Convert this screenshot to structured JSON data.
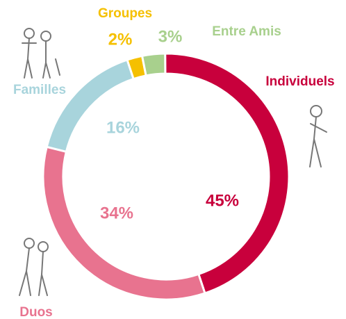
{
  "chart_data": {
    "type": "pie",
    "donut": true,
    "categories": [
      "Individuels",
      "Duos",
      "Familles",
      "Groupes",
      "Entre Amis"
    ],
    "values": [
      45,
      34,
      16,
      2,
      3
    ],
    "value_labels": [
      "45%",
      "34%",
      "16%",
      "2%",
      "3%"
    ],
    "colors": [
      "#c8003c",
      "#e8738f",
      "#a8d4dc",
      "#f5c000",
      "#a8d08d"
    ]
  }
}
